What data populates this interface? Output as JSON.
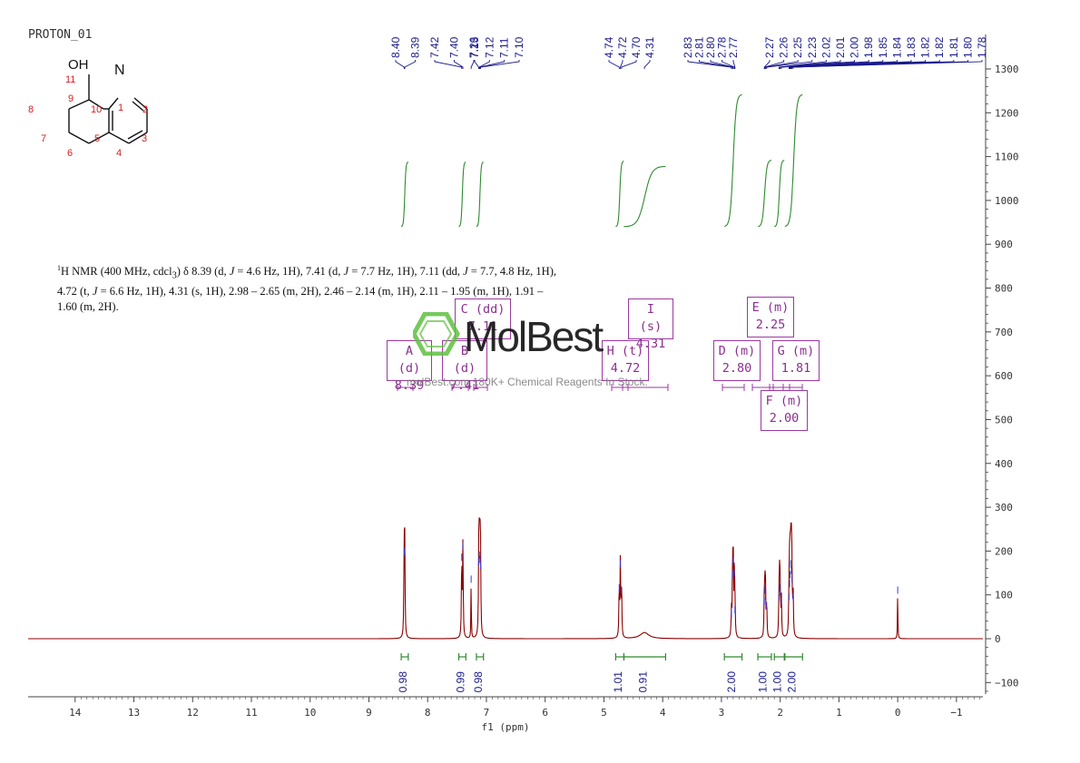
{
  "document_title": "PROTON_01",
  "structure_labels": {
    "hydroxyl": "OH",
    "nitrogen": "N",
    "atom_numbers": [
      "11",
      "9",
      "1",
      "8",
      "10",
      "2",
      "7",
      "5",
      "3",
      "6",
      "4"
    ]
  },
  "nmr_text": {
    "prefix": "1",
    "body_html": "H NMR (400 MHz, cdcl<sub>3</sub>) δ 8.39 (d, <i>J</i> = 4.6 Hz, 1H), 7.41 (d, <i>J</i> = 7.7 Hz, 1H), 7.11 (dd, <i>J</i> = 7.7, 4.8 Hz, 1H), 4.72 (t, <i>J</i> = 6.6 Hz, 1H), 4.31 (s, 1H), 2.98 – 2.65 (m, 2H), 2.46 – 2.14 (m, 1H), 2.11 – 1.95 (m, 1H), 1.91 – 1.60 (m, 2H)."
  },
  "watermark": {
    "brand": "MolBest",
    "tagline": "molBest.com 180K+ Chemical Reagents In Stock."
  },
  "colors": {
    "spectrum": "#8b0000",
    "integral_curve": "#2e8b2e",
    "peak_labels": "#1a1a8c",
    "multiplet_box": "#9b3aa0",
    "integral_bar": "#2e8b2e",
    "integral_value": "#1a1a8c",
    "structure_numbers": "#d42020",
    "watermark": "#5fbf3f"
  },
  "chart_data": {
    "type": "line",
    "xlabel": "f1 (ppm)",
    "x_reversed": true,
    "xlim": [
      14.8,
      -1.45
    ],
    "ylim": [
      -120,
      1340
    ],
    "x_ticks": [
      "14",
      "13",
      "12",
      "11",
      "10",
      "9",
      "8",
      "7",
      "6",
      "5",
      "4",
      "3",
      "2",
      "1",
      "0",
      "−1"
    ],
    "y_ticks": [
      "1300",
      "1200",
      "1100",
      "1000",
      "900",
      "800",
      "700",
      "600",
      "500",
      "400",
      "300",
      "200",
      "100",
      "0",
      "−100"
    ],
    "peaks": [
      {
        "ppm": 8.4,
        "height": 200,
        "width": 0.006
      },
      {
        "ppm": 8.39,
        "height": 205,
        "width": 0.006
      },
      {
        "ppm": 7.42,
        "height": 190,
        "width": 0.006
      },
      {
        "ppm": 7.4,
        "height": 215,
        "width": 0.006
      },
      {
        "ppm": 7.26,
        "height": 140,
        "width": 0.004
      },
      {
        "ppm": 7.13,
        "height": 180,
        "width": 0.006
      },
      {
        "ppm": 7.12,
        "height": 195,
        "width": 0.006
      },
      {
        "ppm": 7.11,
        "height": 185,
        "width": 0.006
      },
      {
        "ppm": 7.1,
        "height": 170,
        "width": 0.006
      },
      {
        "ppm": 4.74,
        "height": 120,
        "width": 0.006
      },
      {
        "ppm": 4.72,
        "height": 175,
        "width": 0.006
      },
      {
        "ppm": 4.7,
        "height": 115,
        "width": 0.006
      },
      {
        "ppm": 4.31,
        "height": 14,
        "width": 0.09
      },
      {
        "ppm": 2.83,
        "height": 60,
        "width": 0.006
      },
      {
        "ppm": 2.81,
        "height": 150,
        "width": 0.006
      },
      {
        "ppm": 2.8,
        "height": 180,
        "width": 0.006
      },
      {
        "ppm": 2.78,
        "height": 155,
        "width": 0.006
      },
      {
        "ppm": 2.77,
        "height": 70,
        "width": 0.006
      },
      {
        "ppm": 2.27,
        "height": 90,
        "width": 0.006
      },
      {
        "ppm": 2.26,
        "height": 115,
        "width": 0.006
      },
      {
        "ppm": 2.25,
        "height": 100,
        "width": 0.006
      },
      {
        "ppm": 2.23,
        "height": 80,
        "width": 0.006
      },
      {
        "ppm": 2.02,
        "height": 100,
        "width": 0.006
      },
      {
        "ppm": 2.01,
        "height": 120,
        "width": 0.006
      },
      {
        "ppm": 2.0,
        "height": 110,
        "width": 0.006
      },
      {
        "ppm": 1.98,
        "height": 90,
        "width": 0.006
      },
      {
        "ppm": 1.85,
        "height": 100,
        "width": 0.006
      },
      {
        "ppm": 1.84,
        "height": 130,
        "width": 0.006
      },
      {
        "ppm": 1.83,
        "height": 150,
        "width": 0.006
      },
      {
        "ppm": 1.82,
        "height": 175,
        "width": 0.006
      },
      {
        "ppm": 1.81,
        "height": 160,
        "width": 0.006
      },
      {
        "ppm": 1.8,
        "height": 140,
        "width": 0.006
      },
      {
        "ppm": 1.78,
        "height": 100,
        "width": 0.006
      },
      {
        "ppm": 0.0,
        "height": 115,
        "width": 0.004
      }
    ],
    "peak_labels": [
      "8.40",
      "8.39",
      "7.42",
      "7.40",
      "7.26",
      "7.13",
      "7.12",
      "7.11",
      "7.10",
      "4.74",
      "4.72",
      "4.70",
      "4.31",
      "2.83",
      "2.81",
      "2.80",
      "2.78",
      "2.77",
      "2.27",
      "2.26",
      "2.25",
      "2.23",
      "2.02",
      "2.01",
      "2.00",
      "1.98",
      "1.85",
      "1.84",
      "1.83",
      "1.82",
      "1.82",
      "1.81",
      "1.80",
      "1.78"
    ],
    "integrals": [
      {
        "from": 8.45,
        "to": 8.33,
        "value": "0.98",
        "y_start": 940,
        "y_end": 1088
      },
      {
        "from": 7.47,
        "to": 7.35,
        "value": "0.99",
        "y_start": 940,
        "y_end": 1088
      },
      {
        "from": 7.17,
        "to": 7.05,
        "value": "0.98",
        "y_start": 940,
        "y_end": 1088
      },
      {
        "from": 4.8,
        "to": 4.66,
        "value": "1.01",
        "y_start": 940,
        "y_end": 1090
      },
      {
        "from": 4.66,
        "to": 3.95,
        "value": "0.91",
        "y_start": 940,
        "y_end": 1078
      },
      {
        "from": 2.95,
        "to": 2.65,
        "value": "2.00",
        "y_start": 940,
        "y_end": 1242
      },
      {
        "from": 2.38,
        "to": 2.15,
        "value": "1.00",
        "y_start": 940,
        "y_end": 1092
      },
      {
        "from": 2.1,
        "to": 1.93,
        "value": "1.00",
        "y_start": 940,
        "y_end": 1092
      },
      {
        "from": 1.92,
        "to": 1.62,
        "value": "2.00",
        "y_start": 940,
        "y_end": 1242
      }
    ],
    "multiplets": [
      {
        "letter": "A",
        "mult": "d",
        "shift": "8.39"
      },
      {
        "letter": "B",
        "mult": "d",
        "shift": "7.41"
      },
      {
        "letter": "C",
        "mult": "dd",
        "shift": "7.11"
      },
      {
        "letter": "H",
        "mult": "t",
        "shift": "4.72"
      },
      {
        "letter": "I",
        "mult": "s",
        "shift": "4.31"
      },
      {
        "letter": "D",
        "mult": "m",
        "shift": "2.80"
      },
      {
        "letter": "E",
        "mult": "m",
        "shift": "2.25"
      },
      {
        "letter": "F",
        "mult": "m",
        "shift": "2.00"
      },
      {
        "letter": "G",
        "mult": "m",
        "shift": "1.81"
      }
    ]
  }
}
